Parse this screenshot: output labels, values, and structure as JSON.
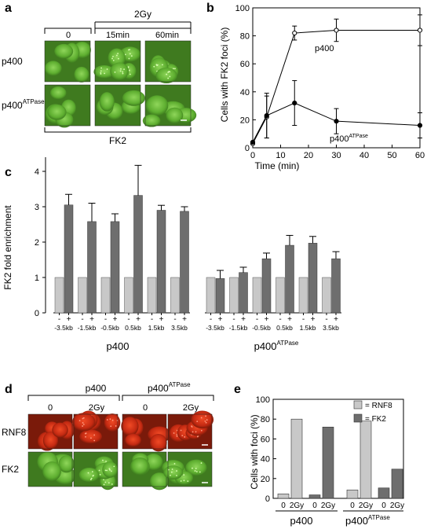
{
  "panels": {
    "a": {
      "letter": "a",
      "header_2gy": "2Gy",
      "col_labels": [
        "0",
        "15min",
        "60min"
      ],
      "row_labels": {
        "p400": "p400",
        "p400atp_main": "p400",
        "p400atp_sup": "ATPase"
      },
      "bottom_label": "FK2",
      "colors": {
        "green_bg": "#3f7a1f",
        "green_cell": "#6fc23a"
      }
    },
    "b": {
      "letter": "b",
      "series_labels": {
        "p400": "p400",
        "p400atp_main": "p400",
        "p400atp_sup": "ATPase"
      }
    },
    "c": {
      "letter": "c",
      "group_labels": {
        "left": "p400",
        "right_main": "p400",
        "right_sup": "ATPase"
      },
      "sign_minus": "-",
      "sign_plus": "+"
    },
    "d": {
      "letter": "d",
      "col_headers": {
        "left": "p400",
        "right_main": "p400",
        "right_sup": "ATPase"
      },
      "col_labels": [
        "0",
        "2Gy",
        "0",
        "2Gy"
      ],
      "row_labels": [
        "RNF8",
        "FK2"
      ],
      "colors": {
        "red_bg": "#7a1a0a",
        "red_cell": "#e0341a",
        "green_bg": "#3f7a1f",
        "green_cell": "#7cc847"
      }
    },
    "e": {
      "letter": "e",
      "group_labels": {
        "left": "p400",
        "right_main": "p400",
        "right_sup": "ATPase"
      }
    }
  },
  "chart_data": [
    {
      "id": "b",
      "type": "line",
      "xlabel": "Time (min)",
      "ylabel": "Cells with FK2 foci (%)",
      "xlim": [
        0,
        60
      ],
      "ylim": [
        0,
        100
      ],
      "xticks": [
        0,
        10,
        20,
        30,
        40,
        50,
        60
      ],
      "yticks": [
        0,
        20,
        40,
        60,
        80,
        100
      ],
      "series": [
        {
          "name": "p400",
          "marker": "open-circle",
          "x": [
            0,
            5,
            15,
            30,
            60
          ],
          "y": [
            3,
            22,
            82,
            84,
            84
          ],
          "err": [
            0,
            15,
            5,
            8,
            11
          ]
        },
        {
          "name": "p400ATPase",
          "marker": "filled-circle",
          "x": [
            0,
            5,
            15,
            30,
            60
          ],
          "y": [
            4,
            23,
            32,
            19,
            16
          ],
          "err": [
            0,
            16,
            16,
            9,
            9
          ]
        }
      ]
    },
    {
      "id": "c",
      "type": "bar",
      "ylabel": "FK2 fold enrichment",
      "ylim": [
        0,
        4.4
      ],
      "yticks": [
        0,
        1,
        2,
        3,
        4
      ],
      "colors": {
        "minus": "#c8c8c8",
        "plus": "#6e6e6e"
      },
      "groups": [
        {
          "name": "p400",
          "categories": [
            "-3.5kb",
            "-1.5kb",
            "-0.5kb",
            "0.5kb",
            "1.5kb",
            "3.5kb"
          ],
          "minus": [
            1,
            1,
            1,
            1,
            1,
            1
          ],
          "plus": [
            3.05,
            2.58,
            2.58,
            3.32,
            2.9,
            2.87
          ],
          "plus_err": [
            0.3,
            0.52,
            0.22,
            0.85,
            0.14,
            0.13
          ]
        },
        {
          "name": "p400ATPase",
          "categories": [
            "-3.5kb",
            "-1.5kb",
            "-0.5kb",
            "0.5kb",
            "1.5kb",
            "3.5kb"
          ],
          "minus": [
            1,
            1,
            1,
            1,
            1,
            1
          ],
          "plus": [
            0.97,
            1.14,
            1.53,
            1.91,
            1.97,
            1.53
          ],
          "plus_err": [
            0.23,
            0.15,
            0.16,
            0.28,
            0.19,
            0.2
          ]
        }
      ]
    },
    {
      "id": "e",
      "type": "bar",
      "ylabel": "Cells with foci (%)",
      "ylim": [
        0,
        100
      ],
      "yticks": [
        0,
        20,
        40,
        60,
        80,
        100
      ],
      "legend": [
        {
          "label": "= RNF8",
          "color": "#c8c8c8"
        },
        {
          "label": "= FK2",
          "color": "#6e6e6e"
        }
      ],
      "categories": [
        "0",
        "2Gy",
        "0",
        "2Gy",
        "0",
        "2Gy",
        "0",
        "2Gy"
      ],
      "values": [
        4.5,
        80,
        3.5,
        72,
        8.5,
        78,
        10.5,
        29.5
      ],
      "series_of_bar": [
        "RNF8",
        "RNF8",
        "FK2",
        "FK2",
        "RNF8",
        "RNF8",
        "FK2",
        "FK2"
      ]
    }
  ]
}
